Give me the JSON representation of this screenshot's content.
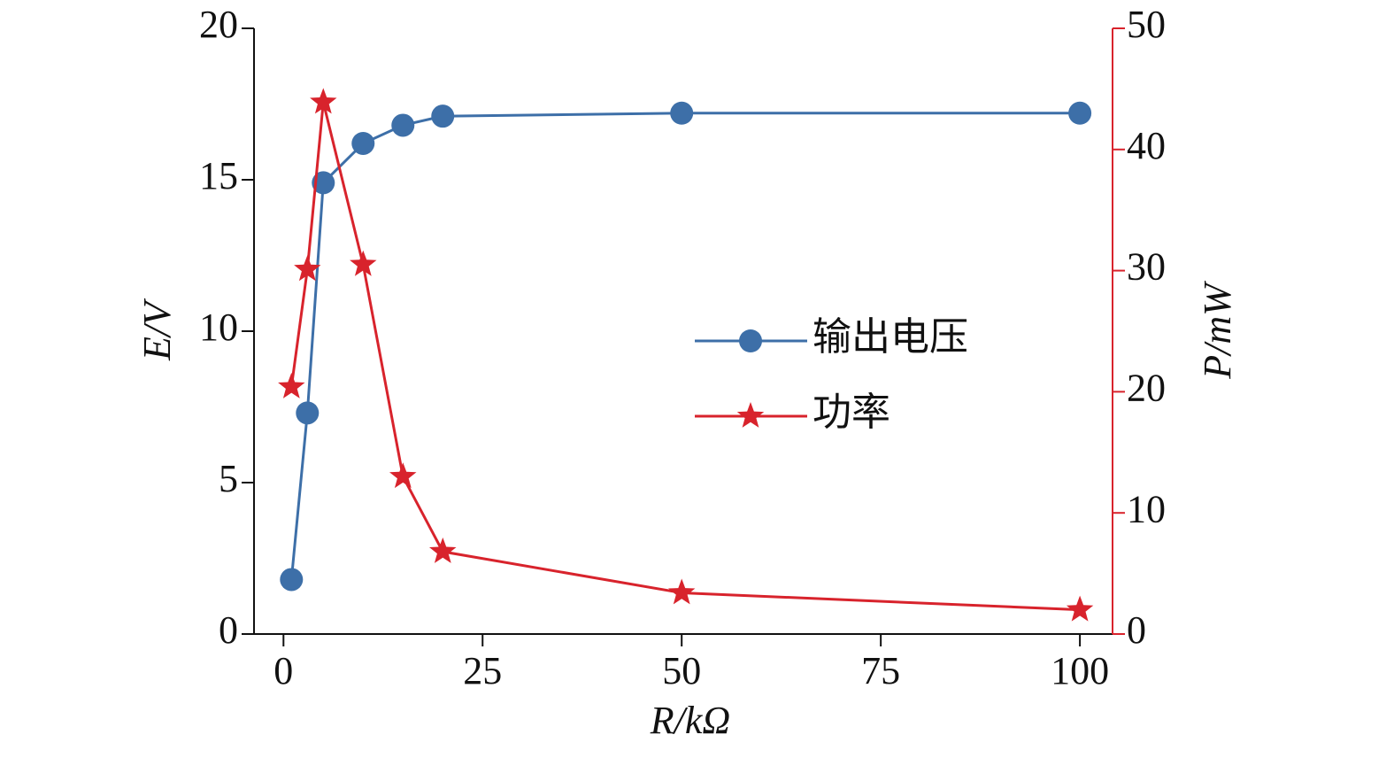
{
  "chart_data": {
    "type": "line",
    "xlabel": "R/kΩ",
    "ylabel": "E/V",
    "y2label": "P/mW",
    "x": [
      1,
      3,
      5,
      10,
      15,
      20,
      50,
      100
    ],
    "series": [
      {
        "name": "输出电压",
        "color": "#3d6fa8",
        "marker": "circle",
        "axis": "y",
        "values": [
          1.8,
          7.3,
          14.9,
          16.2,
          16.8,
          17.1,
          17.2,
          17.2
        ]
      },
      {
        "name": "功率",
        "color": "#d8232c",
        "marker": "star",
        "axis": "y2",
        "values": [
          20.4,
          30.1,
          43.9,
          30.5,
          13.0,
          6.8,
          3.4,
          2.0
        ]
      }
    ],
    "xlim": [
      -3.7,
      104.1
    ],
    "xticks": [
      0,
      25,
      50,
      75,
      100
    ],
    "ylim": [
      0,
      20
    ],
    "yticks": [
      0,
      5,
      10,
      15,
      20
    ],
    "y2lim": [
      0,
      50
    ],
    "y2ticks": [
      0,
      10,
      20,
      30,
      40,
      50
    ],
    "y2color": "#d8232c"
  }
}
